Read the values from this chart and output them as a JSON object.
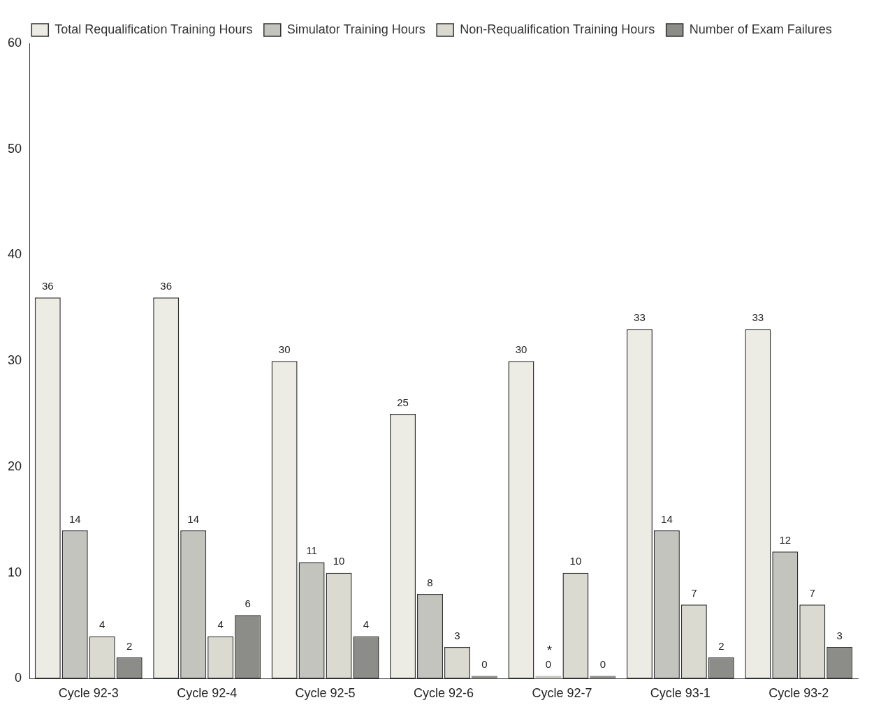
{
  "chart_data": {
    "type": "bar",
    "categories": [
      "Cycle 92-3",
      "Cycle 92-4",
      "Cycle 92-5",
      "Cycle 92-6",
      "Cycle 92-7",
      "Cycle 93-1",
      "Cycle 93-2"
    ],
    "series": [
      {
        "name": "Total Requalification Training Hours",
        "color": "#ecece4",
        "values": [
          36,
          36,
          30,
          25,
          30,
          33,
          33
        ]
      },
      {
        "name": "Simulator Training Hours",
        "color": "#c4c4be",
        "values": [
          14,
          14,
          11,
          8,
          0,
          14,
          12
        ]
      },
      {
        "name": "Non-Requalification Training Hours",
        "color": "#dadad0",
        "values": [
          4,
          4,
          10,
          3,
          10,
          7,
          7
        ]
      },
      {
        "name": "Number of Exam Failures",
        "color": "#8c8c88",
        "values": [
          2,
          6,
          4,
          0,
          0,
          2,
          3
        ]
      }
    ],
    "ylim": [
      0,
      60
    ],
    "yticks": [
      0,
      10,
      20,
      30,
      40,
      50,
      60
    ],
    "grid": false,
    "legend": "top",
    "data_labels": true,
    "annotations": [
      {
        "text": "*",
        "x": "Cycle 92-7",
        "y": 0
      }
    ]
  }
}
